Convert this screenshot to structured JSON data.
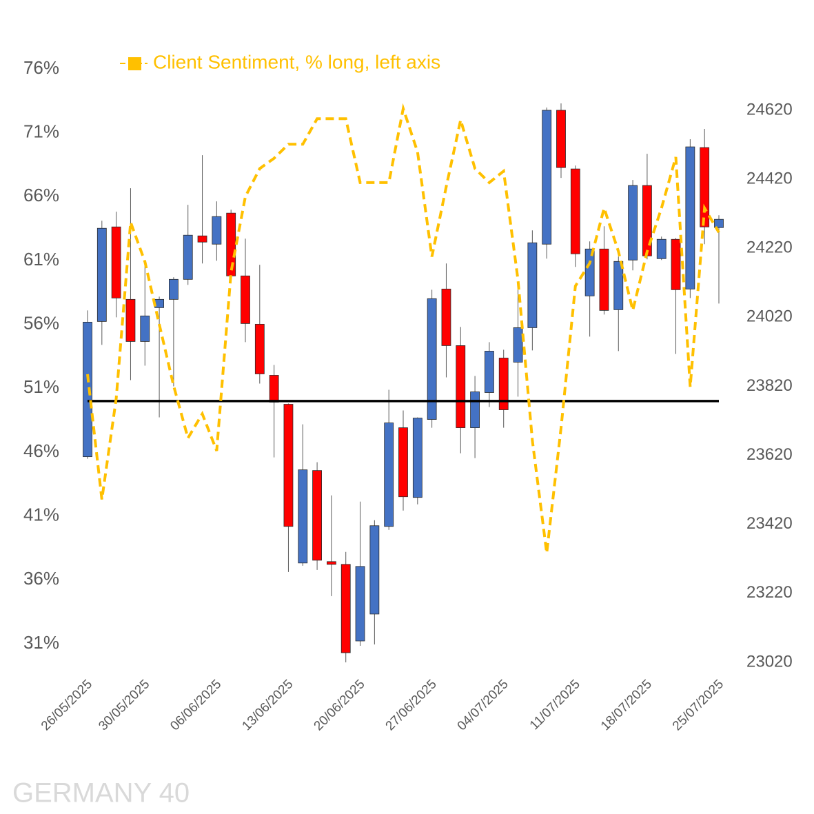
{
  "chart_data": {
    "type": "candlestick",
    "title": "GERMANY 40",
    "categories": [
      "26/05/2025",
      null,
      null,
      null,
      "30/05/2025",
      null,
      null,
      null,
      null,
      "06/06/2025",
      null,
      null,
      null,
      null,
      "13/06/2025",
      null,
      null,
      null,
      null,
      "20/06/2025",
      null,
      null,
      null,
      null,
      "27/06/2025",
      null,
      null,
      null,
      null,
      "04/07/2025",
      null,
      null,
      null,
      null,
      "11/07/2025",
      null,
      null,
      null,
      null,
      "18/07/2025",
      null,
      null,
      null,
      null,
      "25/07/2025"
    ],
    "open": [
      23616,
      24008,
      24282,
      24072,
      23950,
      24048,
      24072,
      24130,
      24256,
      24232,
      24322,
      24140,
      24000,
      23852,
      23768,
      23308,
      23576,
      23312,
      23304,
      23082,
      23160,
      23414,
      23700,
      23498,
      23724,
      24102,
      23938,
      23700,
      23802,
      23902,
      23890,
      23990,
      24232,
      24620,
      24450,
      24082,
      24218,
      24042,
      24186,
      24402,
      24190,
      24246,
      24102,
      24512,
      24280
    ],
    "high": [
      24040,
      24300,
      24326,
      24394,
      24180,
      24080,
      24136,
      24346,
      24490,
      24356,
      24332,
      24248,
      24172,
      23882,
      23770,
      23710,
      23600,
      23504,
      23340,
      23486,
      23432,
      23810,
      23750,
      23730,
      24100,
      24176,
      23992,
      23850,
      23948,
      23926,
      24100,
      24272,
      24628,
      24640,
      24460,
      24240,
      24284,
      24196,
      24418,
      24494,
      24254,
      24250,
      24536,
      24566,
      24316
    ],
    "low": [
      23610,
      23940,
      24020,
      23838,
      23880,
      23730,
      23820,
      24114,
      24176,
      24184,
      24120,
      23948,
      23828,
      23614,
      23282,
      23300,
      23288,
      23212,
      23020,
      23068,
      23072,
      23404,
      23460,
      23478,
      23700,
      23846,
      23626,
      23612,
      23760,
      23700,
      23790,
      23924,
      24190,
      24424,
      24166,
      23964,
      24028,
      23922,
      24156,
      24188,
      24186,
      23914,
      24076,
      24232,
      24060
    ],
    "close": [
      24006,
      24278,
      24076,
      23950,
      24024,
      24072,
      24130,
      24258,
      24238,
      24312,
      24140,
      24002,
      23856,
      23774,
      23414,
      23578,
      23316,
      23304,
      23048,
      23298,
      23416,
      23714,
      23500,
      23728,
      24074,
      23938,
      23700,
      23804,
      23922,
      23752,
      23990,
      24236,
      24620,
      24454,
      24204,
      24218,
      24040,
      24182,
      24402,
      24198,
      24246,
      24100,
      24514,
      24282,
      24304
    ],
    "up_color": "#4472c4",
    "down_color": "#ff0000",
    "series": [
      {
        "name": "Client Sentiment, % long, left axis",
        "color": "#ffc000",
        "axis": "y",
        "values": [
          52.1,
          42.3,
          50.2,
          64.0,
          60.9,
          56.0,
          51.2,
          47.1,
          49.0,
          46.1,
          60.1,
          66.0,
          68.2,
          69.0,
          70.1,
          70.1,
          72.1,
          72.1,
          72.1,
          67.1,
          67.1,
          67.1,
          72.9,
          69.5,
          61.3,
          66.8,
          72.0,
          68.2,
          67.1,
          68.0,
          59.5,
          46.9,
          38.1,
          47.9,
          59.0,
          60.8,
          65.1,
          61.7,
          57.1,
          61.7,
          65.1,
          69.1,
          51.1,
          65.1,
          63.2
        ]
      }
    ],
    "reference_line": 50,
    "ylim": [
      31,
      76
    ],
    "yticks": [
      {
        "value": 76,
        "label": "76%"
      },
      {
        "value": 71,
        "label": "71%"
      },
      {
        "value": 66,
        "label": "66%"
      },
      {
        "value": 61,
        "label": "61%"
      },
      {
        "value": 56,
        "label": "56%"
      },
      {
        "value": 51,
        "label": "51%"
      },
      {
        "value": 46,
        "label": "46%"
      },
      {
        "value": 41,
        "label": "41%"
      },
      {
        "value": 36,
        "label": "36%"
      },
      {
        "value": 31,
        "label": "31%"
      }
    ],
    "y2lim": [
      23020,
      24620
    ],
    "y2ticks": [
      24620,
      24420,
      24220,
      24020,
      23820,
      23620,
      23420,
      23220,
      23020
    ]
  }
}
